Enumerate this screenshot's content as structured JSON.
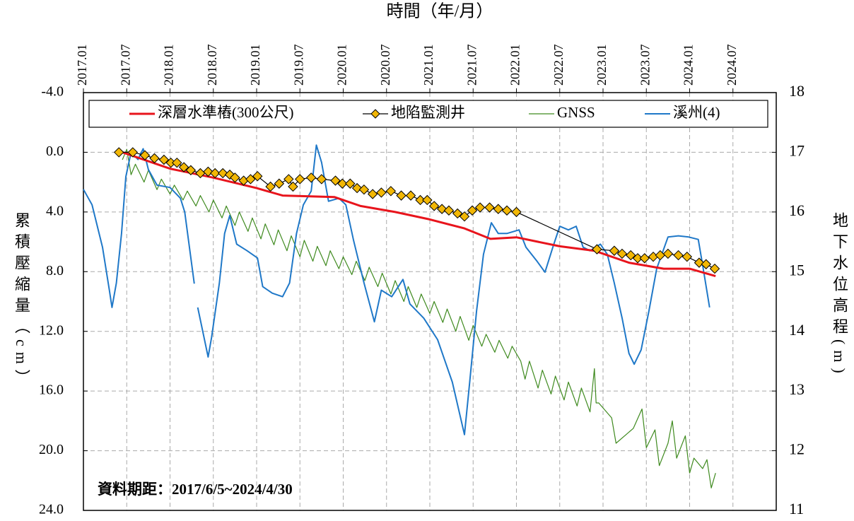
{
  "chart_data": {
    "type": "line",
    "x_label": "時間（年/月）",
    "y_label": "累積壓縮量（cm）",
    "y2_label": "地下水位高程(m)",
    "annotation": "資料期距：2017/6/5~2024/4/30",
    "xlim": [
      2017,
      2025
    ],
    "xticks": [
      {
        "value": 2017.0,
        "label": "2017.01"
      },
      {
        "value": 2017.5,
        "label": "2017.07"
      },
      {
        "value": 2018.0,
        "label": "2018.01"
      },
      {
        "value": 2018.5,
        "label": "2018.07"
      },
      {
        "value": 2019.0,
        "label": "2019.01"
      },
      {
        "value": 2019.5,
        "label": "2019.07"
      },
      {
        "value": 2020.0,
        "label": "2020.01"
      },
      {
        "value": 2020.5,
        "label": "2020.07"
      },
      {
        "value": 2021.0,
        "label": "2021.01"
      },
      {
        "value": 2021.5,
        "label": "2021.07"
      },
      {
        "value": 2022.0,
        "label": "2022.01"
      },
      {
        "value": 2022.5,
        "label": "2022.07"
      },
      {
        "value": 2023.0,
        "label": "2023.01"
      },
      {
        "value": 2023.5,
        "label": "2023.07"
      },
      {
        "value": 2024.0,
        "label": "2024.01"
      },
      {
        "value": 2024.5,
        "label": "2024.07"
      }
    ],
    "ylim": [
      -4,
      24
    ],
    "y_inverted": true,
    "yticks": [
      {
        "value": -4,
        "label": "-4.0"
      },
      {
        "value": 0,
        "label": "0.0"
      },
      {
        "value": 4,
        "label": "4.0"
      },
      {
        "value": 8,
        "label": "8.0"
      },
      {
        "value": 12,
        "label": "12.0"
      },
      {
        "value": 16,
        "label": "16.0"
      },
      {
        "value": 20,
        "label": "20.0"
      },
      {
        "value": 24,
        "label": "24.0"
      }
    ],
    "y2lim": [
      11,
      18
    ],
    "y2ticks": [
      11,
      12,
      13,
      14,
      15,
      16,
      17,
      18
    ],
    "grid": true,
    "legend": "top",
    "series": [
      {
        "name": "深層水準樁(300公尺)",
        "color": "#e8141c",
        "width": 3,
        "x": [
          2017.45,
          2017.75,
          2018.0,
          2018.5,
          2019.0,
          2019.3,
          2019.9,
          2020.2,
          2020.6,
          2021.0,
          2021.4,
          2021.7,
          2022.0,
          2022.5,
          2022.9,
          2023.3,
          2023.7,
          2024.0,
          2024.3
        ],
        "values": [
          0.0,
          0.6,
          1.1,
          1.7,
          2.4,
          2.9,
          3.0,
          3.6,
          4.0,
          4.5,
          5.1,
          5.8,
          5.7,
          6.3,
          6.6,
          7.4,
          7.8,
          7.8,
          8.3
        ]
      },
      {
        "name": "地陷監測井",
        "color": "#f2b705",
        "line_color": "#000000",
        "marker": "diamond",
        "width": 1.2,
        "x": [
          2017.41,
          2017.57,
          2017.71,
          2017.82,
          2017.93,
          2018.01,
          2018.08,
          2018.16,
          2018.24,
          2018.35,
          2018.44,
          2018.52,
          2018.61,
          2018.69,
          2018.75,
          2018.85,
          2018.93,
          2019.01,
          2019.16,
          2019.26,
          2019.37,
          2019.42,
          2019.5,
          2019.63,
          2019.75,
          2019.91,
          2019.99,
          2020.08,
          2020.16,
          2020.24,
          2020.34,
          2020.44,
          2020.55,
          2020.67,
          2020.78,
          2020.89,
          2020.97,
          2021.05,
          2021.14,
          2021.22,
          2021.32,
          2021.4,
          2021.49,
          2021.58,
          2021.69,
          2021.79,
          2021.89,
          2022.0,
          2022.93,
          2023.13,
          2023.22,
          2023.32,
          2023.4,
          2023.48,
          2023.58,
          2023.66,
          2023.75,
          2023.87,
          2023.97,
          2024.11,
          2024.19,
          2024.29
        ],
        "values": [
          0.0,
          0.0,
          0.2,
          0.4,
          0.5,
          0.7,
          0.7,
          1.0,
          1.2,
          1.4,
          1.3,
          1.4,
          1.4,
          1.5,
          1.7,
          1.9,
          1.8,
          1.6,
          2.3,
          2.1,
          1.8,
          2.3,
          1.8,
          1.7,
          1.8,
          1.9,
          2.1,
          2.1,
          2.4,
          2.5,
          2.8,
          2.7,
          2.6,
          2.9,
          2.9,
          3.2,
          3.2,
          3.6,
          3.8,
          3.9,
          4.1,
          4.3,
          3.9,
          3.7,
          3.7,
          3.8,
          3.9,
          4.0,
          6.5,
          6.6,
          6.8,
          6.9,
          7.1,
          7.1,
          7.0,
          6.9,
          6.8,
          6.9,
          7.0,
          7.4,
          7.5,
          7.8
        ]
      },
      {
        "name": "GNSS",
        "color": "#3f8a1f",
        "width": 1.2,
        "x": [
          2017.45,
          2017.5,
          2017.55,
          2017.6,
          2017.7,
          2017.75,
          2017.85,
          2017.9,
          2018.0,
          2018.05,
          2018.15,
          2018.2,
          2018.3,
          2018.35,
          2018.45,
          2018.5,
          2018.6,
          2018.65,
          2018.75,
          2018.8,
          2018.9,
          2018.95,
          2019.05,
          2019.1,
          2019.2,
          2019.25,
          2019.35,
          2019.4,
          2019.5,
          2019.55,
          2019.65,
          2019.7,
          2019.8,
          2019.85,
          2019.95,
          2020.0,
          2020.1,
          2020.15,
          2020.25,
          2020.3,
          2020.4,
          2020.45,
          2020.55,
          2020.6,
          2020.7,
          2020.75,
          2020.85,
          2020.9,
          2021.0,
          2021.05,
          2021.15,
          2021.2,
          2021.3,
          2021.35,
          2021.45,
          2021.5,
          2021.6,
          2021.65,
          2021.75,
          2021.8,
          2021.9,
          2021.95,
          2022.05,
          2022.1,
          2022.15,
          2022.25,
          2022.3,
          2022.4,
          2022.45,
          2022.55,
          2022.6,
          2022.7,
          2022.75,
          2022.85,
          2022.9,
          2022.92,
          2022.95,
          2023.1,
          2023.15,
          2023.35,
          2023.45,
          2023.5,
          2023.6,
          2023.65,
          2023.75,
          2023.8,
          2023.85,
          2023.95,
          2024.0,
          2024.05,
          2024.15,
          2024.2,
          2024.25,
          2024.3
        ],
        "values": [
          0.5,
          -0.2,
          1.5,
          0.8,
          2.0,
          1.2,
          2.5,
          1.8,
          2.8,
          2.2,
          3.2,
          2.6,
          3.6,
          2.9,
          4.0,
          3.2,
          4.4,
          3.6,
          4.9,
          4.0,
          5.3,
          4.4,
          5.8,
          4.8,
          6.2,
          5.2,
          6.6,
          5.6,
          7.0,
          5.9,
          7.3,
          6.3,
          7.6,
          6.6,
          7.8,
          7.0,
          8.2,
          7.3,
          8.6,
          7.7,
          9.0,
          8.1,
          9.5,
          8.6,
          10.0,
          9.0,
          10.4,
          9.5,
          10.8,
          10.0,
          11.4,
          10.5,
          12.0,
          11.0,
          12.6,
          11.6,
          13.0,
          12.2,
          13.4,
          12.6,
          13.8,
          13.0,
          14.0,
          15.2,
          14.0,
          15.8,
          14.6,
          16.2,
          15.0,
          16.6,
          15.4,
          17.0,
          15.8,
          17.4,
          14.5,
          16.8,
          16.8,
          17.8,
          19.5,
          18.5,
          17.2,
          19.8,
          18.6,
          21.0,
          19.5,
          18.0,
          20.5,
          19.0,
          21.5,
          20.5,
          21.2,
          20.6,
          22.5,
          21.5
        ]
      },
      {
        "name": "溪州(4)",
        "color": "#1f78c8",
        "axis": "y2",
        "width": 2,
        "x": [
          2017.0,
          2017.1,
          2017.22,
          2017.3,
          2017.33,
          2017.38,
          2017.44,
          2017.49,
          2017.55,
          2017.63,
          2017.69,
          2017.75,
          2017.85,
          2018.0,
          2018.12,
          2018.17,
          2018.28,
          2018.3,
          2018.32,
          2018.44,
          2018.48,
          2018.57,
          2018.63,
          2018.69,
          2018.77,
          2018.89,
          2019.01,
          2019.07,
          2019.18,
          2019.3,
          2019.38,
          2019.46,
          2019.54,
          2019.63,
          2019.69,
          2019.75,
          2019.83,
          2019.95,
          2020.03,
          2020.12,
          2020.24,
          2020.36,
          2020.44,
          2020.56,
          2020.69,
          2020.77,
          2020.93,
          2021.09,
          2021.26,
          2021.4,
          2021.46,
          2021.54,
          2021.62,
          2021.71,
          2021.79,
          2021.89,
          2022.03,
          2022.11,
          2022.24,
          2022.33,
          2022.42,
          2022.5,
          2022.6,
          2022.69,
          2022.77,
          2022.85,
          2022.97,
          2023.05,
          2023.13,
          2023.22,
          2023.3,
          2023.36,
          2023.44,
          2023.53,
          2023.62,
          2023.75,
          2023.87,
          2023.99,
          2024.1,
          2024.15,
          2024.23
        ],
        "values": [
          16.38,
          16.12,
          15.41,
          14.69,
          14.4,
          14.81,
          15.64,
          16.59,
          17.0,
          16.88,
          17.06,
          16.71,
          16.45,
          16.41,
          16.23,
          16.0,
          14.8,
          null,
          14.4,
          13.57,
          13.9,
          14.81,
          15.64,
          15.94,
          15.46,
          15.35,
          15.23,
          14.75,
          14.64,
          14.58,
          14.81,
          15.64,
          16.12,
          16.35,
          17.12,
          16.83,
          16.18,
          16.23,
          16.12,
          15.52,
          14.81,
          14.16,
          14.69,
          14.58,
          14.87,
          14.46,
          14.22,
          13.86,
          13.15,
          12.27,
          13.15,
          14.34,
          15.29,
          15.82,
          15.64,
          15.64,
          15.7,
          15.41,
          15.17,
          14.99,
          15.41,
          15.76,
          15.7,
          15.76,
          15.41,
          15.35,
          15.46,
          15.29,
          14.81,
          14.22,
          13.63,
          13.45,
          13.69,
          14.34,
          15.05,
          15.58,
          15.6,
          15.58,
          15.54,
          15.11,
          14.4
        ]
      }
    ]
  }
}
